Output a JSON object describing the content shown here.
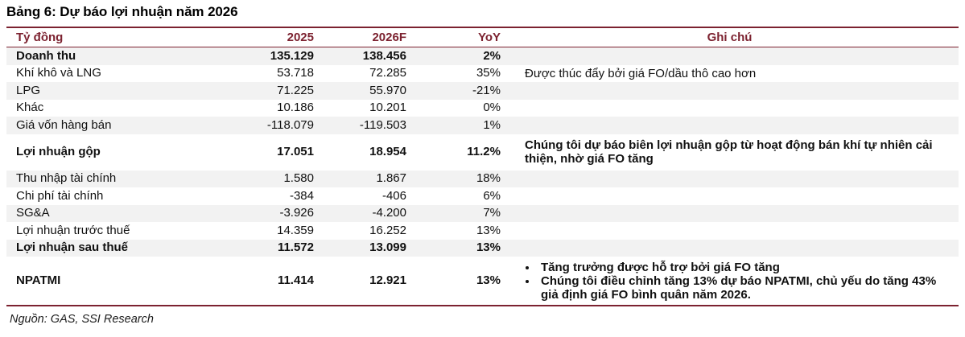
{
  "title": "Bảng 6: Dự báo lợi nhuận năm 2026",
  "colors": {
    "accent_maroon": "#7C2230",
    "stripe_gray": "#F2F2F2",
    "text": "#111111"
  },
  "table": {
    "headers": [
      "Tỷ đồng",
      "2025",
      "2026F",
      "YoY",
      "Ghi chú"
    ],
    "rows": [
      {
        "label": "Doanh thu",
        "v2025": "135.129",
        "v2026f": "138.456",
        "yoy": "2%",
        "note": "",
        "bold": true,
        "shaded": true
      },
      {
        "label": "Khí khô và LNG",
        "v2025": "53.718",
        "v2026f": "72.285",
        "yoy": "35%",
        "note": "Được thúc đẩy bởi giá FO/dầu thô cao hơn",
        "bold": false,
        "shaded": false
      },
      {
        "label": "LPG",
        "v2025": "71.225",
        "v2026f": "55.970",
        "yoy": "-21%",
        "note": "",
        "bold": false,
        "shaded": true
      },
      {
        "label": "Khác",
        "v2025": "10.186",
        "v2026f": "10.201",
        "yoy": "0%",
        "note": "",
        "bold": false,
        "shaded": false
      },
      {
        "label": "Giá vốn hàng bán",
        "v2025": "-118.079",
        "v2026f": "-119.503",
        "yoy": "1%",
        "note": "",
        "bold": false,
        "shaded": true
      },
      {
        "label": "Lợi nhuận gộp",
        "v2025": "17.051",
        "v2026f": "18.954",
        "yoy": "11.2%",
        "note": "Chúng tôi dự báo biên lợi nhuận gộp từ hoạt động bán khí tự nhiên cải thiện, nhờ giá FO tăng",
        "note_bold": true,
        "bold": true,
        "shaded": false
      },
      {
        "label": "Thu nhập tài chính",
        "v2025": "1.580",
        "v2026f": "1.867",
        "yoy": "18%",
        "note": "",
        "bold": false,
        "shaded": true
      },
      {
        "label": "Chi phí tài chính",
        "v2025": "-384",
        "v2026f": "-406",
        "yoy": "6%",
        "note": "",
        "bold": false,
        "shaded": false
      },
      {
        "label": "SG&A",
        "v2025": "-3.926",
        "v2026f": "-4.200",
        "yoy": "7%",
        "note": "",
        "bold": false,
        "shaded": true
      },
      {
        "label": "Lợi nhuận trước thuế",
        "v2025": "14.359",
        "v2026f": "16.252",
        "yoy": "13%",
        "note": "",
        "bold": false,
        "shaded": false
      },
      {
        "label": "Lợi nhuận sau thuế",
        "v2025": "11.572",
        "v2026f": "13.099",
        "yoy": "13%",
        "note": "",
        "bold": true,
        "shaded": true
      },
      {
        "label": "NPATMI",
        "v2025": "11.414",
        "v2026f": "12.921",
        "yoy": "13%",
        "bullets": [
          "Tăng trưởng được hỗ trợ bởi giá FO tăng",
          "Chúng tôi điều chỉnh tăng 13% dự báo NPATMI, chủ yếu do tăng 43% giả định giá FO bình quân năm 2026."
        ],
        "note_bold": true,
        "bold": true,
        "shaded": false
      }
    ]
  },
  "footer": {
    "source": "Nguồn: GAS, SSI Research"
  }
}
